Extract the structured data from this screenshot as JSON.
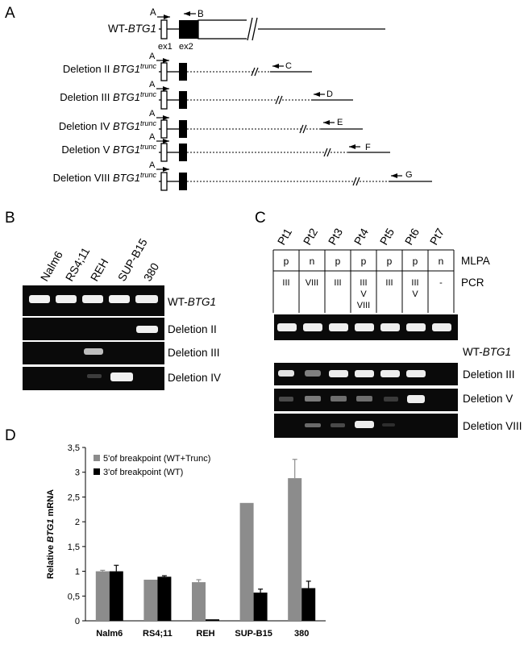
{
  "panels": {
    "A": {
      "letter": "A",
      "wt_label": "WT-",
      "wt_gene": "BTG1",
      "exons": [
        "ex1",
        "ex2"
      ],
      "primers": [
        "A",
        "B",
        "C",
        "D",
        "E",
        "F",
        "G"
      ],
      "deletion_rows": [
        {
          "prefix": "Deletion II ",
          "gene": "BTG1",
          "sup": "trunc",
          "primer": "C"
        },
        {
          "prefix": "Deletion III ",
          "gene": "BTG1",
          "sup": "trunc",
          "primer": "D"
        },
        {
          "prefix": "Deletion IV ",
          "gene": "BTG1",
          "sup": "trunc",
          "primer": "E"
        },
        {
          "prefix": "Deletion V ",
          "gene": "BTG1",
          "sup": "trunc",
          "primer": "F"
        },
        {
          "prefix": "Deletion VIII ",
          "gene": "BTG1",
          "sup": "trunc",
          "primer": "G"
        }
      ]
    },
    "B": {
      "letter": "B",
      "lanes": [
        "Nalm6",
        "RS4;11",
        "REH",
        "SUP-B15",
        "380"
      ],
      "rows": [
        {
          "prefix": "WT-",
          "gene": "BTG1"
        },
        {
          "prefix": "Deletion II",
          "gene": ""
        },
        {
          "prefix": "Deletion III",
          "gene": ""
        },
        {
          "prefix": "Deletion IV",
          "gene": ""
        }
      ]
    },
    "C": {
      "letter": "C",
      "lanes": [
        "Pt1",
        "Pt2",
        "Pt3",
        "Pt4",
        "Pt5",
        "Pt6",
        "Pt7"
      ],
      "mlpa_label": "MLPA",
      "pcr_label": "PCR",
      "mlpa": [
        "p",
        "n",
        "p",
        "p",
        "p",
        "p",
        "n"
      ],
      "pcr": [
        [
          "III"
        ],
        [
          "VIII"
        ],
        [
          "III"
        ],
        [
          "III",
          "V",
          "VIII"
        ],
        [
          "III"
        ],
        [
          "III",
          "V"
        ],
        [
          "-"
        ]
      ],
      "rows": [
        {
          "prefix": "WT-",
          "gene": "BTG1"
        },
        {
          "prefix": "Deletion III",
          "gene": ""
        },
        {
          "prefix": "Deletion V",
          "gene": ""
        },
        {
          "prefix": "Deletion VIII",
          "gene": ""
        }
      ]
    },
    "D": {
      "letter": "D"
    }
  },
  "chart_data": {
    "type": "bar",
    "categories": [
      "Nalm6",
      "RS4;11",
      "REH",
      "SUP-B15",
      "380"
    ],
    "series": [
      {
        "name": "5'of breakpoint (WT+Trunc)",
        "color": "#8c8c8c",
        "values": [
          1.0,
          0.83,
          0.78,
          2.38,
          2.88
        ],
        "errors": [
          0.02,
          0.0,
          0.05,
          0.0,
          0.38
        ]
      },
      {
        "name": "3'of breakpoint (WT)",
        "color": "#000000",
        "values": [
          1.0,
          0.89,
          0.03,
          0.57,
          0.66
        ],
        "errors": [
          0.12,
          0.02,
          0.0,
          0.07,
          0.14
        ]
      }
    ],
    "ylabel_prefix": "Relative ",
    "ylabel_gene": "BTG1",
    "ylabel_suffix": " mRNA",
    "yticks": [
      "0",
      "0,5",
      "1",
      "1,5",
      "2",
      "2,5",
      "3",
      "3,5"
    ],
    "ylim": [
      0,
      3.5
    ],
    "legend_position": "top-left",
    "grid": false
  }
}
